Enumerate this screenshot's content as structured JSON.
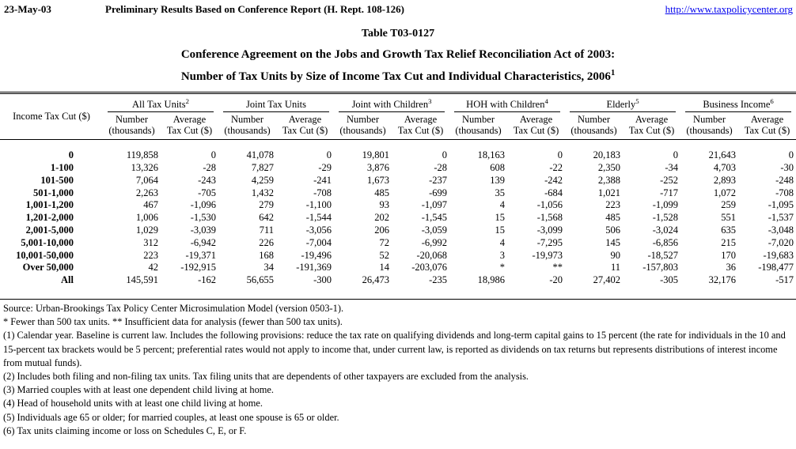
{
  "page": {
    "date": "23-May-03",
    "header_center": "Preliminary Results Based on Conference Report (H. Rept. 108-126)",
    "url": "http://www.taxpolicycenter.org",
    "link_color": "#0000ee",
    "text_color": "#000000",
    "background_color": "#ffffff"
  },
  "title": {
    "line1": "Table T03-0127",
    "line2": "Conference Agreement on the Jobs and Growth Tax Relief Reconciliation Act of 2003:",
    "line3": "Number of Tax Units by Size of Income Tax Cut and Individual Characteristics, 2006",
    "line3_sup": "1"
  },
  "table": {
    "row_header": "Income Tax Cut ($)",
    "subheaders": {
      "number_line1": "Number",
      "number_line2": "(thousands)",
      "avg_line1": "Average",
      "avg_line2": "Tax Cut ($)"
    },
    "groups": [
      {
        "label": "All Tax Units",
        "sup": "2"
      },
      {
        "label": "Joint Tax Units",
        "sup": ""
      },
      {
        "label": "Joint with Children",
        "sup": "3"
      },
      {
        "label": "HOH with Children",
        "sup": "4"
      },
      {
        "label": "Elderly",
        "sup": "5"
      },
      {
        "label": "Business Income",
        "sup": "6"
      }
    ],
    "rows": [
      {
        "label": "0",
        "values": [
          "119,858",
          "0",
          "41,078",
          "0",
          "19,801",
          "0",
          "18,163",
          "0",
          "20,183",
          "0",
          "21,643",
          "0"
        ]
      },
      {
        "label": "1-100",
        "values": [
          "13,326",
          "-28",
          "7,827",
          "-29",
          "3,876",
          "-28",
          "608",
          "-22",
          "2,350",
          "-34",
          "4,703",
          "-30"
        ]
      },
      {
        "label": "101-500",
        "values": [
          "7,064",
          "-243",
          "4,259",
          "-241",
          "1,673",
          "-237",
          "139",
          "-242",
          "2,388",
          "-252",
          "2,893",
          "-248"
        ]
      },
      {
        "label": "501-1,000",
        "values": [
          "2,263",
          "-705",
          "1,432",
          "-708",
          "485",
          "-699",
          "35",
          "-684",
          "1,021",
          "-717",
          "1,072",
          "-708"
        ]
      },
      {
        "label": "1,001-1,200",
        "values": [
          "467",
          "-1,096",
          "279",
          "-1,100",
          "93",
          "-1,097",
          "4",
          "-1,056",
          "223",
          "-1,099",
          "259",
          "-1,095"
        ]
      },
      {
        "label": "1,201-2,000",
        "values": [
          "1,006",
          "-1,530",
          "642",
          "-1,544",
          "202",
          "-1,545",
          "15",
          "-1,568",
          "485",
          "-1,528",
          "551",
          "-1,537"
        ]
      },
      {
        "label": "2,001-5,000",
        "values": [
          "1,029",
          "-3,039",
          "711",
          "-3,056",
          "206",
          "-3,059",
          "15",
          "-3,099",
          "506",
          "-3,024",
          "635",
          "-3,048"
        ]
      },
      {
        "label": "5,001-10,000",
        "values": [
          "312",
          "-6,942",
          "226",
          "-7,004",
          "72",
          "-6,992",
          "4",
          "-7,295",
          "145",
          "-6,856",
          "215",
          "-7,020"
        ]
      },
      {
        "label": "10,001-50,000",
        "values": [
          "223",
          "-19,371",
          "168",
          "-19,496",
          "52",
          "-20,068",
          "3",
          "-19,973",
          "90",
          "-18,527",
          "170",
          "-19,683"
        ]
      },
      {
        "label": "Over 50,000",
        "values": [
          "42",
          "-192,915",
          "34",
          "-191,369",
          "14",
          "-203,076",
          "*",
          "**",
          "11",
          "-157,803",
          "36",
          "-198,477"
        ]
      },
      {
        "label": "All",
        "values": [
          "145,591",
          "-162",
          "56,655",
          "-300",
          "26,473",
          "-235",
          "18,986",
          "-20",
          "27,402",
          "-305",
          "32,176",
          "-517"
        ]
      }
    ]
  },
  "footnotes": [
    "Source: Urban-Brookings Tax Policy Center Microsimulation Model (version 0503-1).",
    "* Fewer than 500 tax units.  ** Insufficient data for analysis (fewer than 500 tax units).",
    "(1) Calendar year. Baseline is current law. Includes the following provisions: reduce the tax rate on qualifying dividends and long-term capital gains to 15 percent (the rate for individuals in the 10 and 15-percent tax brackets would be 5 percent; preferential rates would not apply to income that, under current law, is reported as dividends on tax returns but represents distributions of interest income from mutual funds).",
    "(2) Includes both filing and non-filing tax units.  Tax filing units that are dependents of other taxpayers are excluded from the analysis.",
    "(3) Married couples with at least one dependent child living at home.",
    "(4) Head of household units with at least one child living at home.",
    "(5) Individuals age 65 or older; for married couples, at least one spouse is 65 or older.",
    "(6) Tax units claiming income or loss on Schedules C, E, or F."
  ]
}
